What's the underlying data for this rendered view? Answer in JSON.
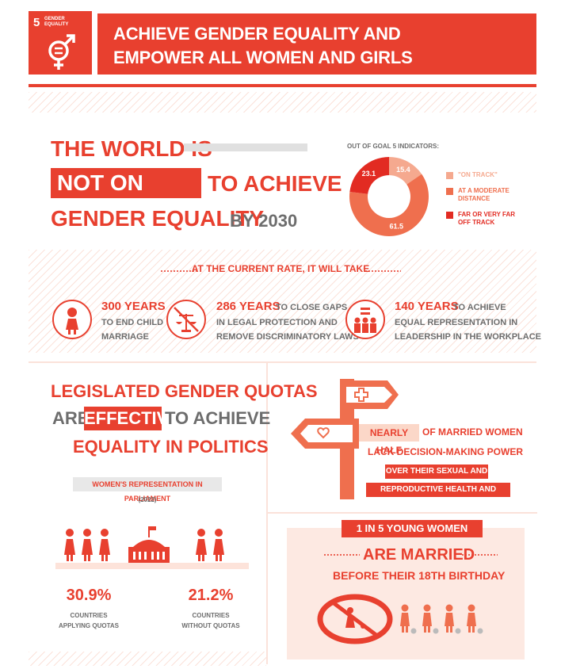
{
  "header": {
    "goal_number": "5",
    "goal_label_line1": "GENDER",
    "goal_label_line2": "EQUALITY",
    "title_line1": "ACHIEVE GENDER EQUALITY AND",
    "title_line2": "EMPOWER ALL WOMEN AND GIRLS"
  },
  "world": {
    "line1": "THE WORLD IS",
    "highlight": "NOT ON TRACK",
    "line2_rest": "TO ACHIEVE",
    "line3": "GENDER EQUALITY",
    "by_year": "BY 2030"
  },
  "chart_data": {
    "type": "pie",
    "title": "OUT OF GOAL 5 INDICATORS:",
    "categories": [
      "\"ON TRACK\"",
      "AT A MODERATE DISTANCE",
      "FAR OR VERY FAR OFF TRACK"
    ],
    "values": [
      15.4,
      61.5,
      23.1
    ],
    "value_labels": [
      "15.4",
      "61.5",
      "23.1"
    ],
    "colors": [
      "#f5a98f",
      "#ef6f4e",
      "#e22b22"
    ],
    "donut": true,
    "legend_position": "right"
  },
  "legend": {
    "on_track": "\"ON TRACK\"",
    "moderate_1": "AT A MODERATE",
    "moderate_2": "DISTANCE",
    "far_1": "FAR OR VERY FAR",
    "far_2": "OFF TRACK"
  },
  "rate": {
    "title": "AT THE CURRENT RATE, IT WILL TAKE",
    "items": [
      {
        "years": "300 YEARS",
        "inline": "",
        "line1": "TO END CHILD",
        "line2": "MARRIAGE",
        "icon": "child-icon"
      },
      {
        "years": "286 YEARS",
        "inline": "TO CLOSE GAPS",
        "line1": "IN LEGAL PROTECTION AND",
        "line2": "REMOVE DISCRIMINATORY LAWS",
        "icon": "scales-icon"
      },
      {
        "years": "140 YEARS",
        "inline": "TO ACHIEVE",
        "line1": "EQUAL REPRESENTATION IN",
        "line2": "LEADERSHIP IN THE WORKPLACE",
        "icon": "people-equal-icon"
      }
    ]
  },
  "quotas": {
    "line1": "LEGISLATED GENDER QUOTAS",
    "are": "ARE",
    "effective": "EFFECTIVE",
    "to_achieve": "TO ACHIEVE",
    "line3": "EQUALITY IN POLITICS",
    "chart_label": "WOMEN'S REPRESENTATION IN PARLIAMENT",
    "year": "(2022)",
    "left_value": "30.9%",
    "left_label_1": "COUNTRIES",
    "left_label_2": "APPLYING QUOTAS",
    "right_value": "21.2%",
    "right_label_1": "COUNTRIES",
    "right_label_2": "WITHOUT QUOTAS"
  },
  "decision": {
    "nearly_half": "NEARLY HALF",
    "of_married": "OF MARRIED WOMEN",
    "lack": "LACK DECISION-MAKING POWER",
    "pill1": "OVER THEIR SEXUAL AND",
    "pill2": "REPRODUCTIVE HEALTH AND RIGHTS"
  },
  "married": {
    "badge": "1 IN 5 YOUNG WOMEN",
    "are_married": "ARE MARRIED",
    "before": "BEFORE THEIR 18TH BIRTHDAY"
  }
}
